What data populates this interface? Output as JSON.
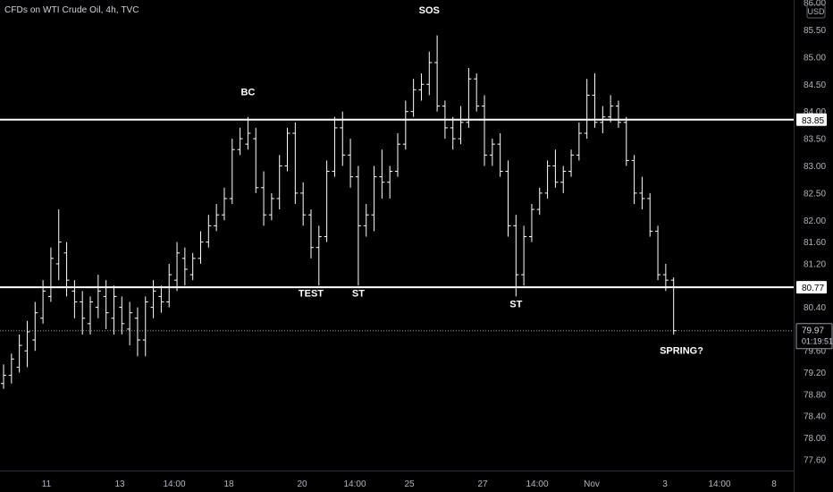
{
  "header": {
    "title": "CFDs on WTI Crude Oil, 4h, TVC"
  },
  "colors": {
    "background": "#000000",
    "bar": "#ffffff",
    "level_line": "#ffffff",
    "axis_text": "#b2b5be",
    "price_tag_bg": "#ffffff",
    "price_tag_text": "#000000"
  },
  "chart_data": {
    "type": "ohlc",
    "title": "CFDs on WTI Crude Oil, 4h, TVC",
    "currency": "USD",
    "ylim": [
      77.4,
      86.05
    ],
    "y_ticks": [
      "86.00",
      "85.50",
      "85.00",
      "84.50",
      "84.00",
      "83.50",
      "83.00",
      "82.50",
      "82.00",
      "81.60",
      "81.20",
      "80.80",
      "80.40",
      "80.00",
      "79.60",
      "79.20",
      "78.80",
      "78.40",
      "78.00",
      "77.60"
    ],
    "x_ticks": [
      "11",
      "13",
      "14:00",
      "18",
      "20",
      "14:00",
      "25",
      "27",
      "14:00",
      "Nov",
      "3",
      "14:00",
      "8"
    ],
    "bars": [
      [
        79.0,
        79.35,
        78.9,
        79.15
      ],
      [
        79.15,
        79.55,
        79.0,
        79.45
      ],
      [
        79.3,
        79.9,
        79.2,
        79.7
      ],
      [
        79.6,
        80.15,
        79.3,
        79.95
      ],
      [
        79.8,
        80.5,
        79.6,
        80.3
      ],
      [
        80.2,
        80.9,
        80.1,
        80.7
      ],
      [
        80.6,
        81.5,
        80.5,
        81.3
      ],
      [
        81.2,
        82.2,
        80.9,
        81.6
      ],
      [
        81.4,
        81.6,
        80.6,
        80.9
      ],
      [
        80.7,
        80.9,
        80.2,
        80.5
      ],
      [
        80.5,
        80.7,
        79.9,
        80.2
      ],
      [
        80.1,
        80.6,
        79.9,
        80.5
      ],
      [
        80.4,
        81.0,
        80.2,
        80.7
      ],
      [
        80.6,
        80.9,
        80.0,
        80.3
      ],
      [
        80.2,
        80.8,
        79.9,
        80.6
      ],
      [
        80.4,
        80.6,
        79.9,
        80.1
      ],
      [
        80.0,
        80.5,
        79.7,
        80.3
      ],
      [
        80.2,
        80.4,
        79.5,
        79.8
      ],
      [
        79.8,
        80.6,
        79.5,
        80.5
      ],
      [
        80.4,
        80.9,
        80.2,
        80.7
      ],
      [
        80.6,
        80.8,
        80.3,
        80.5
      ],
      [
        80.5,
        81.2,
        80.4,
        81.0
      ],
      [
        80.9,
        81.6,
        80.7,
        81.4
      ],
      [
        81.3,
        81.5,
        80.8,
        81.1
      ],
      [
        81.0,
        81.4,
        80.9,
        81.3
      ],
      [
        81.3,
        81.8,
        81.2,
        81.6
      ],
      [
        81.6,
        82.1,
        81.5,
        81.9
      ],
      [
        81.9,
        82.3,
        81.8,
        82.1
      ],
      [
        82.1,
        82.6,
        82.0,
        82.4
      ],
      [
        82.4,
        83.5,
        82.3,
        83.3
      ],
      [
        83.3,
        83.7,
        83.2,
        83.5
      ],
      [
        83.4,
        83.9,
        83.3,
        83.6
      ],
      [
        83.5,
        83.7,
        82.5,
        82.6
      ],
      [
        82.6,
        82.9,
        81.9,
        82.1
      ],
      [
        82.1,
        82.5,
        82.0,
        82.4
      ],
      [
        82.4,
        83.2,
        82.2,
        83.0
      ],
      [
        83.0,
        83.7,
        82.9,
        83.6
      ],
      [
        83.6,
        83.8,
        82.3,
        82.5
      ],
      [
        82.5,
        82.7,
        81.9,
        82.1
      ],
      [
        82.1,
        82.2,
        81.3,
        81.5
      ],
      [
        81.5,
        81.9,
        80.8,
        81.7
      ],
      [
        81.7,
        83.1,
        81.6,
        82.9
      ],
      [
        82.9,
        83.9,
        82.8,
        83.7
      ],
      [
        83.7,
        84.0,
        83.0,
        83.2
      ],
      [
        83.2,
        83.5,
        82.6,
        82.8
      ],
      [
        82.8,
        83.0,
        80.8,
        81.9
      ],
      [
        81.9,
        82.3,
        81.7,
        82.1
      ],
      [
        82.1,
        83.0,
        81.8,
        82.8
      ],
      [
        82.8,
        83.3,
        82.4,
        82.7
      ],
      [
        82.7,
        83.0,
        82.4,
        82.9
      ],
      [
        82.9,
        83.6,
        82.8,
        83.4
      ],
      [
        83.4,
        84.2,
        83.3,
        84.0
      ],
      [
        84.0,
        84.6,
        83.9,
        84.4
      ],
      [
        84.4,
        84.7,
        84.2,
        84.5
      ],
      [
        84.5,
        85.1,
        84.3,
        84.9
      ],
      [
        84.9,
        85.4,
        84.0,
        84.1
      ],
      [
        84.1,
        84.2,
        83.5,
        83.7
      ],
      [
        83.7,
        83.9,
        83.3,
        83.5
      ],
      [
        83.5,
        84.1,
        83.4,
        83.8
      ],
      [
        83.8,
        84.8,
        83.7,
        84.6
      ],
      [
        84.6,
        84.7,
        84.0,
        84.1
      ],
      [
        84.1,
        84.3,
        83.0,
        83.2
      ],
      [
        83.2,
        83.5,
        83.0,
        83.4
      ],
      [
        83.4,
        83.6,
        82.8,
        82.9
      ],
      [
        82.9,
        83.1,
        81.7,
        81.9
      ],
      [
        81.9,
        82.1,
        80.6,
        81.0
      ],
      [
        81.0,
        81.9,
        80.8,
        81.7
      ],
      [
        81.7,
        82.3,
        81.6,
        82.2
      ],
      [
        82.2,
        82.6,
        82.1,
        82.5
      ],
      [
        82.5,
        83.1,
        82.4,
        83.0
      ],
      [
        83.0,
        83.3,
        82.6,
        82.7
      ],
      [
        82.7,
        83.0,
        82.5,
        82.9
      ],
      [
        82.9,
        83.3,
        82.8,
        83.2
      ],
      [
        83.2,
        83.8,
        83.1,
        83.6
      ],
      [
        83.6,
        84.6,
        83.5,
        84.3
      ],
      [
        84.3,
        84.7,
        83.7,
        83.8
      ],
      [
        83.8,
        84.1,
        83.6,
        83.9
      ],
      [
        83.9,
        84.3,
        83.8,
        84.1
      ],
      [
        84.1,
        84.2,
        83.7,
        83.8
      ],
      [
        83.8,
        83.9,
        83.0,
        83.1
      ],
      [
        83.1,
        83.2,
        82.3,
        82.5
      ],
      [
        82.5,
        82.8,
        82.2,
        82.4
      ],
      [
        82.4,
        82.5,
        81.7,
        81.8
      ],
      [
        81.8,
        81.9,
        80.9,
        81.0
      ],
      [
        81.0,
        81.2,
        80.7,
        80.9
      ],
      [
        80.9,
        80.95,
        79.9,
        79.97
      ]
    ],
    "levels": [
      {
        "price": 83.85,
        "label": "83.85"
      },
      {
        "price": 80.77,
        "label": "80.77"
      }
    ],
    "last_price": {
      "price": 79.97,
      "label": "79.97",
      "countdown": "01:19:51"
    },
    "annotations": [
      {
        "text": "BC",
        "bar": 31,
        "price": 84.3
      },
      {
        "text": "SOS",
        "bar": 54,
        "price": 85.8
      },
      {
        "text": "TEST",
        "bar": 39,
        "price": 80.6
      },
      {
        "text": "ST",
        "bar": 45,
        "price": 80.6
      },
      {
        "text": "ST",
        "bar": 65,
        "price": 80.4
      },
      {
        "text": "SPRING?",
        "bar": 86,
        "price": 79.55
      }
    ]
  }
}
